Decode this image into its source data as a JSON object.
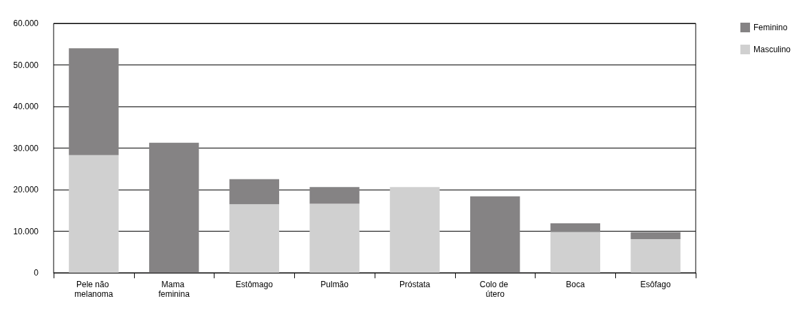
{
  "chart_data": {
    "type": "bar",
    "stacked": true,
    "categories": [
      "Pele não melanoma",
      "Mama feminina",
      "Estômago",
      "Pulmão",
      "Próstata",
      "Colo de útero",
      "Boca",
      "Esôfago"
    ],
    "series": [
      {
        "name": "Masculino",
        "color": "#d0d0d0",
        "values": [
          28300,
          0,
          16500,
          16600,
          20600,
          0,
          9800,
          8100
        ]
      },
      {
        "name": "Feminino",
        "color": "#858384",
        "values": [
          25700,
          31300,
          6000,
          4000,
          0,
          18400,
          2100,
          1700
        ]
      }
    ],
    "ylim": [
      0,
      60000
    ],
    "yticks": [
      {
        "value": 0,
        "label": "0"
      },
      {
        "value": 10000,
        "label": "10.000"
      },
      {
        "value": 20000,
        "label": "20.000"
      },
      {
        "value": 30000,
        "label": "30.000"
      },
      {
        "value": 40000,
        "label": "40.000"
      },
      {
        "value": 50000,
        "label": "50.000"
      },
      {
        "value": 60000,
        "label": "60.000"
      }
    ],
    "grid": "y",
    "legend": "top right"
  }
}
